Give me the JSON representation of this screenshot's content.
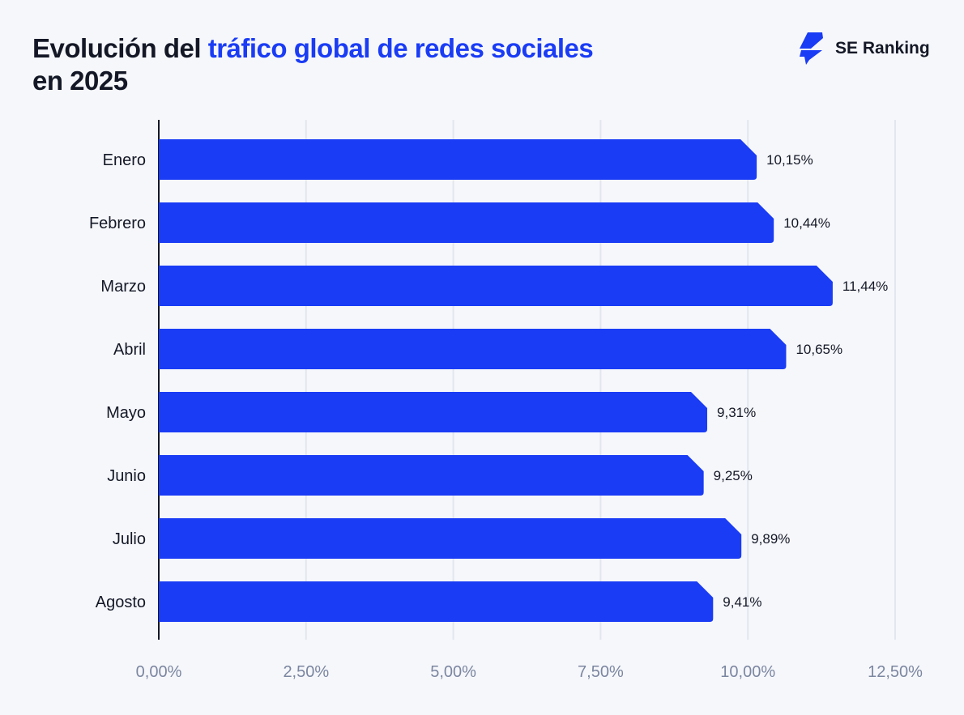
{
  "title": {
    "part1": "Evolución del ",
    "highlight": "tráfico global de redes sociales",
    "line2": "en 2025"
  },
  "brand": {
    "name": "SE Ranking",
    "icon": "se-ranking-logo-icon"
  },
  "colors": {
    "bar": "#1a3cf5",
    "highlight": "#1a3cf5",
    "text": "#141826",
    "tick": "#7b86a0",
    "grid": "#e2e6ef"
  },
  "chart_data": {
    "type": "bar",
    "orientation": "horizontal",
    "categories": [
      "Enero",
      "Febrero",
      "Marzo",
      "Abril",
      "Mayo",
      "Junio",
      "Julio",
      "Agosto"
    ],
    "values": [
      10.15,
      10.44,
      11.44,
      10.65,
      9.31,
      9.25,
      9.89,
      9.41
    ],
    "data_labels": [
      "10,15%",
      "10,44%",
      "11,44%",
      "10,65%",
      "9,31%",
      "9,25%",
      "9,89%",
      "9,41%"
    ],
    "xlim": [
      0,
      12.5
    ],
    "xticks": [
      0,
      2.5,
      5,
      7.5,
      10,
      12.5
    ],
    "xtick_labels": [
      "0,00%",
      "2,50%",
      "5,00%",
      "7,50%",
      "10,00%",
      "12,50%"
    ],
    "grid": "vertical"
  }
}
